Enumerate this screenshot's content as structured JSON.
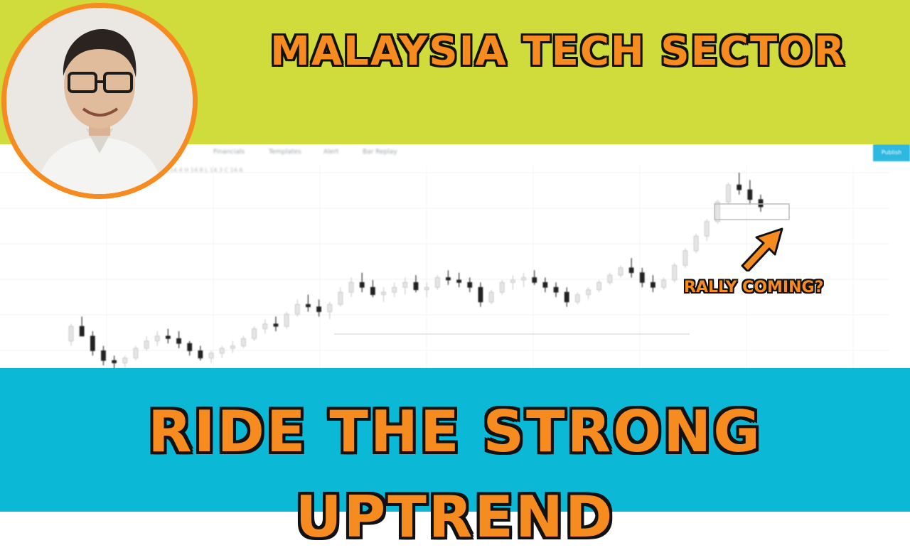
{
  "headline": "MALAYSIA TECH SECTOR",
  "tagline": "RIDE THE STRONG UPTREND",
  "callout": "RALLY COMING?",
  "toolbar": {
    "items": [
      "Financials",
      "Templates",
      "Alert",
      "Bar Replay"
    ],
    "publish_label": "Publish"
  },
  "colors": {
    "top_banner": "#cfdc3c",
    "bottom_banner": "#0bb8d6",
    "accent_orange": "#f68b1f",
    "up_candle": "#e5e5e5",
    "down_candle": "#222222"
  },
  "icons": {
    "arrow": "up-right-arrow-icon",
    "avatar": "presenter-portrait"
  },
  "chart_data": {
    "type": "candlestick",
    "trend": "uptrend",
    "series": [
      {
        "name": "",
        "values": [
          [
            48,
            55,
            46,
            54
          ],
          [
            54,
            58,
            52,
            50
          ],
          [
            50,
            52,
            42,
            44
          ],
          [
            44,
            46,
            38,
            40
          ],
          [
            40,
            42,
            36,
            39
          ],
          [
            39,
            42,
            37,
            41
          ],
          [
            41,
            46,
            40,
            45
          ],
          [
            45,
            50,
            44,
            48
          ],
          [
            48,
            52,
            46,
            50
          ],
          [
            50,
            53,
            47,
            49
          ],
          [
            49,
            52,
            45,
            47
          ],
          [
            47,
            48,
            42,
            44
          ],
          [
            44,
            46,
            40,
            41
          ],
          [
            41,
            44,
            39,
            43
          ],
          [
            43,
            46,
            41,
            45
          ],
          [
            45,
            48,
            43,
            46
          ],
          [
            46,
            50,
            45,
            49
          ],
          [
            49,
            54,
            48,
            53
          ],
          [
            53,
            57,
            51,
            55
          ],
          [
            55,
            58,
            52,
            54
          ],
          [
            54,
            60,
            53,
            59
          ],
          [
            59,
            65,
            58,
            63
          ],
          [
            63,
            67,
            60,
            62
          ],
          [
            62,
            65,
            58,
            60
          ],
          [
            60,
            64,
            57,
            63
          ],
          [
            63,
            70,
            62,
            68
          ],
          [
            68,
            74,
            66,
            72
          ],
          [
            72,
            76,
            68,
            70
          ],
          [
            70,
            73,
            66,
            67
          ],
          [
            67,
            70,
            64,
            68
          ],
          [
            68,
            72,
            66,
            70
          ],
          [
            70,
            74,
            67,
            72
          ],
          [
            72,
            75,
            68,
            69
          ],
          [
            69,
            72,
            66,
            70
          ],
          [
            70,
            75,
            69,
            74
          ],
          [
            74,
            77,
            71,
            73
          ],
          [
            73,
            76,
            70,
            72
          ],
          [
            72,
            74,
            68,
            70
          ],
          [
            70,
            72,
            62,
            64
          ],
          [
            64,
            69,
            63,
            68
          ],
          [
            68,
            73,
            67,
            72
          ],
          [
            72,
            75,
            69,
            73
          ],
          [
            73,
            76,
            70,
            74
          ],
          [
            74,
            77,
            71,
            72
          ],
          [
            72,
            74,
            68,
            70
          ],
          [
            70,
            72,
            66,
            68
          ],
          [
            68,
            70,
            62,
            64
          ],
          [
            64,
            68,
            63,
            67
          ],
          [
            67,
            70,
            65,
            69
          ],
          [
            69,
            73,
            68,
            72
          ],
          [
            72,
            76,
            71,
            75
          ],
          [
            75,
            79,
            74,
            78
          ],
          [
            78,
            82,
            74,
            76
          ],
          [
            76,
            78,
            70,
            72
          ],
          [
            72,
            75,
            68,
            70
          ],
          [
            70,
            74,
            69,
            73
          ],
          [
            73,
            80,
            72,
            79
          ],
          [
            79,
            86,
            78,
            85
          ],
          [
            85,
            92,
            84,
            91
          ],
          [
            91,
            98,
            89,
            97
          ],
          [
            97,
            106,
            96,
            105
          ],
          [
            105,
            113,
            104,
            112
          ],
          [
            112,
            117,
            108,
            110
          ],
          [
            110,
            114,
            104,
            106
          ],
          [
            106,
            108,
            101,
            103
          ]
        ]
      }
    ]
  }
}
